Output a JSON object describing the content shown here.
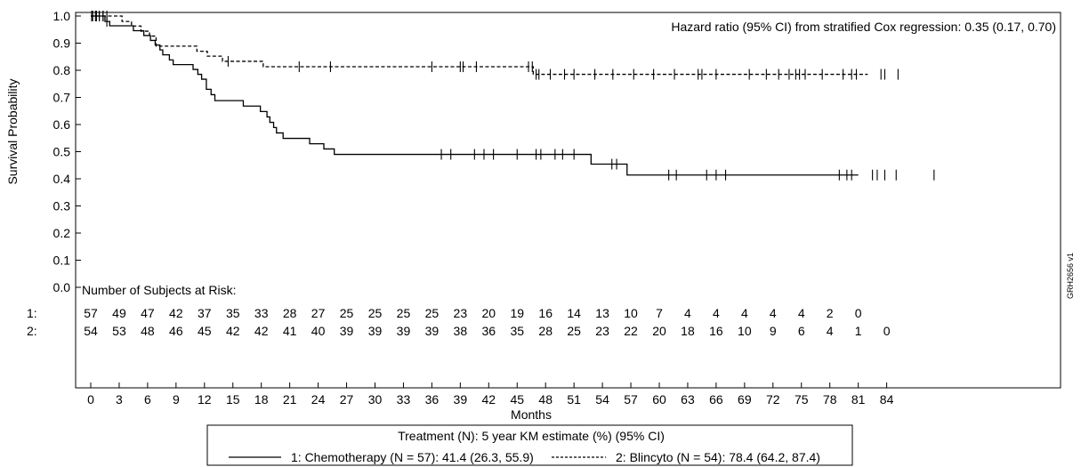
{
  "chart_data": {
    "type": "line",
    "subtype": "kaplan-meier",
    "ylabel": "Survival Probability",
    "xlabel": "Months",
    "xlim": [
      0,
      87
    ],
    "ylim": [
      0,
      1.0
    ],
    "x_ticks": [
      0,
      3,
      6,
      9,
      12,
      15,
      18,
      21,
      24,
      27,
      30,
      33,
      36,
      39,
      42,
      45,
      48,
      51,
      54,
      57,
      60,
      63,
      66,
      69,
      72,
      75,
      78,
      81,
      84
    ],
    "y_ticks": [
      "0.0",
      "0.1",
      "0.2",
      "0.3",
      "0.4",
      "0.5",
      "0.6",
      "0.7",
      "0.8",
      "0.9",
      "1.0"
    ],
    "grid": false,
    "annotation": "Hazard ratio (95% CI) from stratified Cox regression: 0.35 (0.17, 0.70)",
    "series": [
      {
        "name": "1: Chemotherapy (N = 57): 41.4 (26.3, 55.9)",
        "line_style": "solid",
        "steps": [
          [
            0,
            1.0
          ],
          [
            1.5,
            0.98
          ],
          [
            2,
            0.964
          ],
          [
            4.5,
            0.946
          ],
          [
            5.6,
            0.928
          ],
          [
            6.3,
            0.91
          ],
          [
            6.8,
            0.893
          ],
          [
            7.3,
            0.875
          ],
          [
            7.6,
            0.857
          ],
          [
            8.3,
            0.838
          ],
          [
            8.7,
            0.821
          ],
          [
            10.8,
            0.803
          ],
          [
            11.3,
            0.785
          ],
          [
            11.7,
            0.767
          ],
          [
            12.2,
            0.73
          ],
          [
            12.7,
            0.71
          ],
          [
            13.1,
            0.688
          ],
          [
            16.1,
            0.668
          ],
          [
            17.9,
            0.648
          ],
          [
            18.6,
            0.628
          ],
          [
            18.9,
            0.608
          ],
          [
            19.3,
            0.589
          ],
          [
            19.6,
            0.569
          ],
          [
            20.3,
            0.549
          ],
          [
            23.1,
            0.529
          ],
          [
            24.6,
            0.51
          ],
          [
            25.7,
            0.49
          ],
          [
            52.8,
            0.454
          ],
          [
            56.6,
            0.414
          ],
          [
            81,
            0.414
          ]
        ],
        "censor_x": [
          0.2,
          0.6,
          0.9,
          1.3,
          1.7,
          37,
          38,
          40.5,
          41.5,
          42.5,
          45,
          47,
          47.5,
          49,
          49.8,
          51,
          55,
          55.5,
          61,
          61.8,
          65,
          66,
          67,
          79,
          79.8,
          80.3,
          82.5,
          83,
          83.8,
          85,
          89
        ]
      },
      {
        "name": "2: Blincyto (N = 54): 78.4 (64.2, 87.4)",
        "line_style": "dashed",
        "steps": [
          [
            0,
            1.0
          ],
          [
            3.3,
            0.98
          ],
          [
            4.3,
            0.963
          ],
          [
            5.3,
            0.944
          ],
          [
            6.2,
            0.926
          ],
          [
            6.9,
            0.889
          ],
          [
            11.2,
            0.87
          ],
          [
            12.3,
            0.852
          ],
          [
            13.9,
            0.833
          ],
          [
            18.2,
            0.813
          ],
          [
            46.7,
            0.785
          ],
          [
            82,
            0.785
          ]
        ],
        "censor_x": [
          0.1,
          0.5,
          0.9,
          1.3,
          1.7,
          14.5,
          22,
          25.3,
          36,
          39,
          39.3,
          40.7,
          46.2,
          46.6,
          47,
          47.3,
          48.5,
          50,
          51,
          53.2,
          55.1,
          57.3,
          59.4,
          61.6,
          64.1,
          64.5,
          66,
          69.5,
          71.3,
          72.6,
          73.7,
          74.4,
          74.8,
          75.4,
          77.2,
          79.4,
          80.3,
          80.8,
          83.4,
          83.8,
          85.2
        ]
      }
    ],
    "risk_table": {
      "title": "Number of Subjects at Risk:",
      "rows": [
        {
          "label": "1:",
          "values": [
            "57",
            "49",
            "47",
            "42",
            "37",
            "35",
            "33",
            "28",
            "27",
            "25",
            "25",
            "25",
            "25",
            "23",
            "20",
            "19",
            "16",
            "14",
            "13",
            "10",
            "7",
            "4",
            "4",
            "4",
            "4",
            "4",
            "2",
            "0",
            ""
          ]
        },
        {
          "label": "2:",
          "values": [
            "54",
            "53",
            "48",
            "46",
            "45",
            "42",
            "42",
            "41",
            "40",
            "39",
            "39",
            "39",
            "39",
            "38",
            "36",
            "35",
            "28",
            "25",
            "23",
            "22",
            "20",
            "18",
            "16",
            "10",
            "9",
            "6",
            "4",
            "1",
            "0"
          ]
        }
      ]
    },
    "legend": {
      "placement": "bottom",
      "title": "Treatment (N): 5 year KM estimate (%) (95% CI)"
    },
    "figure_code": "GRH2656 v1"
  }
}
